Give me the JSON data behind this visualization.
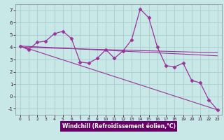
{
  "xlabel": "Windchill (Refroidissement éolien,°C)",
  "bg_color": "#c8e8e8",
  "grid_color": "#aacccc",
  "line_color": "#993399",
  "xlim": [
    -0.5,
    23.5
  ],
  "ylim": [
    -1.5,
    7.5
  ],
  "yticks": [
    -1,
    0,
    1,
    2,
    3,
    4,
    5,
    6,
    7
  ],
  "xticks": [
    0,
    1,
    2,
    3,
    4,
    5,
    6,
    7,
    8,
    9,
    10,
    11,
    12,
    13,
    14,
    15,
    16,
    17,
    18,
    19,
    20,
    21,
    22,
    23
  ],
  "series1_x": [
    0,
    1,
    2,
    3,
    4,
    5,
    6,
    7,
    8,
    9,
    10,
    11,
    12,
    13,
    14,
    15,
    16,
    17,
    18,
    19,
    20,
    21,
    22,
    23
  ],
  "series1_y": [
    4.1,
    3.8,
    4.4,
    4.5,
    5.1,
    5.3,
    4.7,
    2.8,
    2.7,
    3.1,
    3.8,
    3.1,
    3.7,
    4.6,
    7.1,
    6.4,
    4.0,
    2.5,
    2.4,
    2.7,
    1.3,
    1.1,
    -0.3,
    -1.1
  ],
  "trend1_x": [
    0,
    23
  ],
  "trend1_y": [
    4.1,
    3.3
  ],
  "trend2_x": [
    0,
    23
  ],
  "trend2_y": [
    4.1,
    -1.1
  ],
  "trend3_x": [
    0,
    23
  ],
  "trend3_y": [
    4.0,
    3.55
  ],
  "xlabel_bg": "#660066",
  "xlabel_color": "#ffffff"
}
